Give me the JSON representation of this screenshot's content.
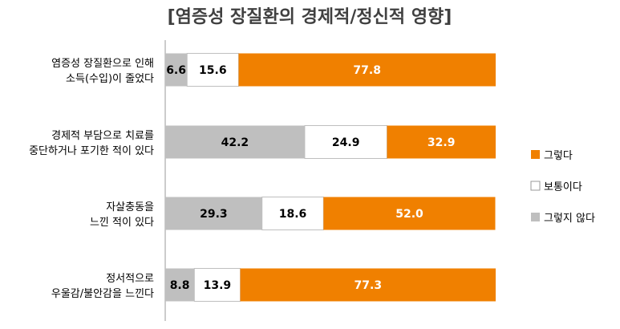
{
  "chart_data": {
    "type": "bar",
    "stacked": true,
    "orientation": "horizontal",
    "title": "[염증성 장질환의 경제적/정신적 영향]",
    "categories": [
      [
        "염증성 장질환으로 인해",
        "소득(수입)이 줄었다"
      ],
      [
        "경제적 부담으로 치료를",
        "중단하거나 포기한 적이 있다"
      ],
      [
        "자살충동을",
        "느낀 적이 있다"
      ],
      [
        "정서적으로",
        "우울감/불안감을 느낀다"
      ]
    ],
    "series": [
      {
        "name": "그렇지 않다",
        "color": "#bfbfbf",
        "label_color": "#000000",
        "values": [
          6.6,
          42.2,
          29.3,
          8.8
        ]
      },
      {
        "name": "보통이다",
        "color": "#ffffff",
        "label_color": "#000000",
        "values": [
          15.6,
          24.9,
          18.6,
          13.9
        ]
      },
      {
        "name": "그렇다",
        "color": "#f08000",
        "label_color": "#ffffff",
        "values": [
          77.8,
          32.9,
          52.0,
          77.3
        ]
      }
    ],
    "legend_order": [
      "그렇다",
      "보통이다",
      "그렇지 않다"
    ],
    "legend_position": "right",
    "xlim": [
      0,
      100
    ],
    "unit": "%"
  }
}
